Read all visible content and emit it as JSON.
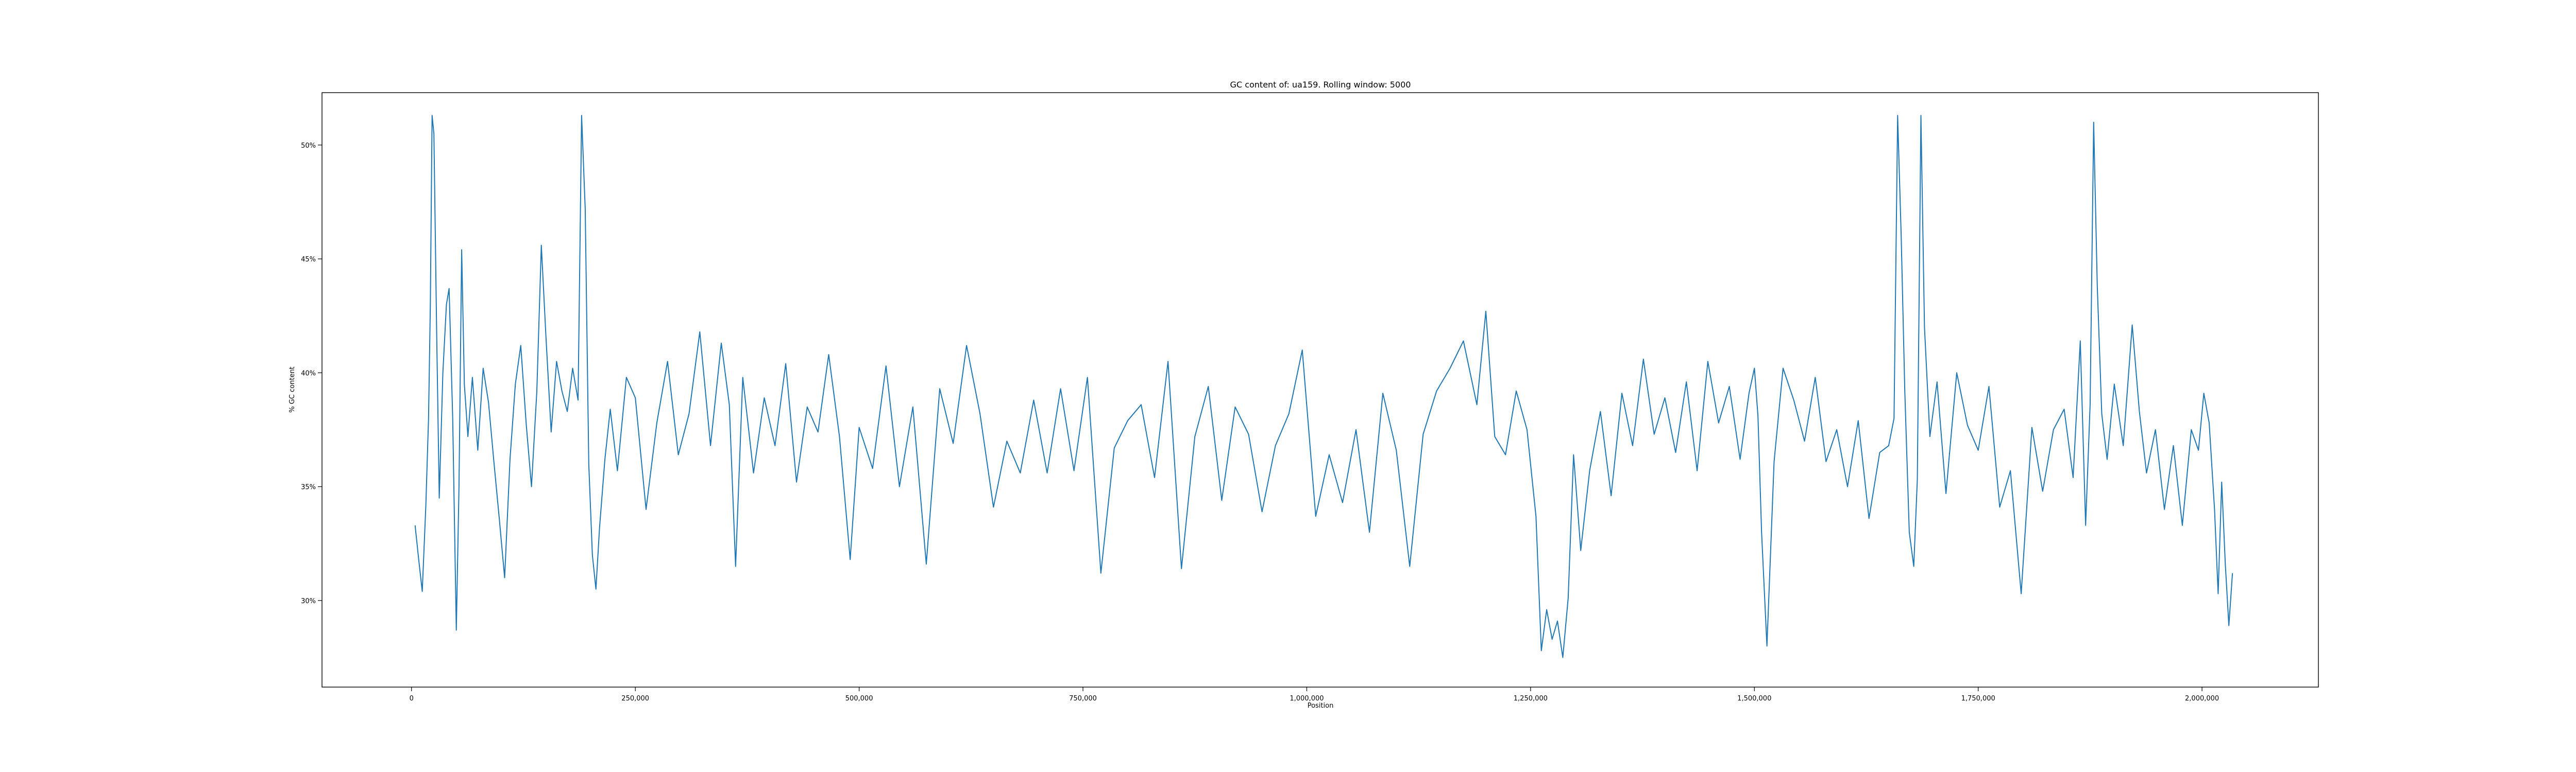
{
  "chart_data": {
    "type": "line",
    "title": "GC content of: ua159. Rolling window: 5000",
    "xlabel": "Position",
    "ylabel": "% GC content",
    "xlim": [
      -100000,
      2130000
    ],
    "ylim": [
      0.262,
      0.523
    ],
    "grid": false,
    "legend": "none",
    "line_color": "#1f77b4",
    "x_ticks": [
      {
        "value": 0,
        "label": "0"
      },
      {
        "value": 250000,
        "label": "250,000"
      },
      {
        "value": 500000,
        "label": "500,000"
      },
      {
        "value": 750000,
        "label": "750,000"
      },
      {
        "value": 1000000,
        "label": "1,000,000"
      },
      {
        "value": 1250000,
        "label": "1,250,000"
      },
      {
        "value": 1500000,
        "label": "1,500,000"
      },
      {
        "value": 1750000,
        "label": "1,750,000"
      },
      {
        "value": 2000000,
        "label": "2,000,000"
      }
    ],
    "y_ticks": [
      {
        "value": 0.3,
        "label": "30%"
      },
      {
        "value": 0.35,
        "label": "35%"
      },
      {
        "value": 0.4,
        "label": "40%"
      },
      {
        "value": 0.45,
        "label": "45%"
      },
      {
        "value": 0.5,
        "label": "50%"
      }
    ],
    "series": [
      {
        "x": [
          4000,
          8000,
          12000,
          16000,
          19000,
          21000,
          23000,
          25000,
          28000,
          31000,
          35000,
          39000,
          42000,
          46000,
          50000,
          53000,
          56000,
          59000,
          63000,
          68000,
          74000,
          80000,
          86000,
          92000,
          98000,
          104000,
          110000,
          116000,
          122000,
          128000,
          134000,
          140000,
          145000,
          150000,
          156000,
          162000,
          168000,
          174000,
          180000,
          186000,
          190000,
          194000,
          198000,
          202000,
          206000,
          210000,
          216000,
          222000,
          230000,
          240000,
          250000,
          262000,
          274000,
          286000,
          298000,
          310000,
          322000,
          334000,
          346000,
          355000,
          362000,
          370000,
          382000,
          394000,
          406000,
          418000,
          430000,
          442000,
          454000,
          466000,
          478000,
          490000,
          500000,
          515000,
          530000,
          545000,
          560000,
          575000,
          590000,
          605000,
          620000,
          635000,
          650000,
          665000,
          680000,
          695000,
          710000,
          725000,
          740000,
          755000,
          770000,
          785000,
          800000,
          815000,
          830000,
          845000,
          860000,
          875000,
          890000,
          905000,
          920000,
          935000,
          950000,
          965000,
          980000,
          995000,
          1010000,
          1025000,
          1040000,
          1055000,
          1070000,
          1085000,
          1100000,
          1115000,
          1130000,
          1145000,
          1160000,
          1175000,
          1190000,
          1200000,
          1210000,
          1222000,
          1234000,
          1246000,
          1256000,
          1262000,
          1268000,
          1274000,
          1280000,
          1286000,
          1292000,
          1298000,
          1306000,
          1316000,
          1328000,
          1340000,
          1352000,
          1364000,
          1376000,
          1388000,
          1400000,
          1412000,
          1424000,
          1436000,
          1448000,
          1460000,
          1472000,
          1484000,
          1494000,
          1500000,
          1504000,
          1508000,
          1514000,
          1522000,
          1532000,
          1544000,
          1556000,
          1568000,
          1580000,
          1592000,
          1604000,
          1616000,
          1628000,
          1640000,
          1650000,
          1656000,
          1660000,
          1664000,
          1668000,
          1673000,
          1678000,
          1682000,
          1686000,
          1690000,
          1696000,
          1704000,
          1714000,
          1726000,
          1738000,
          1750000,
          1762000,
          1774000,
          1786000,
          1798000,
          1810000,
          1822000,
          1834000,
          1846000,
          1856000,
          1864000,
          1870000,
          1875000,
          1879000,
          1883000,
          1888000,
          1894000,
          1902000,
          1912000,
          1922000,
          1930000,
          1938000,
          1948000,
          1958000,
          1968000,
          1978000,
          1988000,
          1996000,
          2002000,
          2008000,
          2014000,
          2018000,
          2022000,
          2026000,
          2030000,
          2034000
        ],
        "values": [
          0.333,
          0.318,
          0.304,
          0.342,
          0.38,
          0.43,
          0.513,
          0.505,
          0.42,
          0.345,
          0.4,
          0.43,
          0.437,
          0.38,
          0.287,
          0.35,
          0.454,
          0.395,
          0.372,
          0.398,
          0.366,
          0.402,
          0.387,
          0.361,
          0.336,
          0.31,
          0.362,
          0.395,
          0.412,
          0.378,
          0.35,
          0.392,
          0.456,
          0.417,
          0.374,
          0.405,
          0.392,
          0.383,
          0.402,
          0.388,
          0.513,
          0.472,
          0.36,
          0.32,
          0.305,
          0.332,
          0.362,
          0.384,
          0.357,
          0.398,
          0.389,
          0.34,
          0.378,
          0.405,
          0.364,
          0.382,
          0.418,
          0.368,
          0.413,
          0.386,
          0.315,
          0.398,
          0.356,
          0.389,
          0.368,
          0.404,
          0.352,
          0.385,
          0.374,
          0.408,
          0.372,
          0.318,
          0.376,
          0.358,
          0.403,
          0.35,
          0.385,
          0.316,
          0.393,
          0.369,
          0.412,
          0.382,
          0.341,
          0.37,
          0.356,
          0.388,
          0.356,
          0.393,
          0.357,
          0.398,
          0.312,
          0.367,
          0.379,
          0.386,
          0.354,
          0.405,
          0.314,
          0.372,
          0.394,
          0.344,
          0.385,
          0.373,
          0.339,
          0.368,
          0.382,
          0.41,
          0.337,
          0.364,
          0.343,
          0.375,
          0.33,
          0.391,
          0.366,
          0.315,
          0.373,
          0.392,
          0.402,
          0.414,
          0.386,
          0.427,
          0.372,
          0.364,
          0.392,
          0.375,
          0.337,
          0.278,
          0.296,
          0.283,
          0.291,
          0.275,
          0.301,
          0.364,
          0.322,
          0.357,
          0.383,
          0.346,
          0.391,
          0.368,
          0.406,
          0.373,
          0.389,
          0.365,
          0.396,
          0.357,
          0.405,
          0.378,
          0.394,
          0.362,
          0.391,
          0.402,
          0.381,
          0.33,
          0.28,
          0.361,
          0.402,
          0.388,
          0.37,
          0.398,
          0.361,
          0.375,
          0.35,
          0.379,
          0.336,
          0.365,
          0.368,
          0.38,
          0.513,
          0.46,
          0.392,
          0.33,
          0.315,
          0.353,
          0.513,
          0.42,
          0.372,
          0.396,
          0.347,
          0.4,
          0.377,
          0.366,
          0.394,
          0.341,
          0.357,
          0.303,
          0.376,
          0.348,
          0.375,
          0.384,
          0.354,
          0.414,
          0.333,
          0.386,
          0.51,
          0.438,
          0.382,
          0.362,
          0.395,
          0.368,
          0.421,
          0.383,
          0.356,
          0.375,
          0.34,
          0.368,
          0.333,
          0.375,
          0.366,
          0.391,
          0.378,
          0.34,
          0.303,
          0.352,
          0.316,
          0.289,
          0.312
        ]
      }
    ]
  }
}
